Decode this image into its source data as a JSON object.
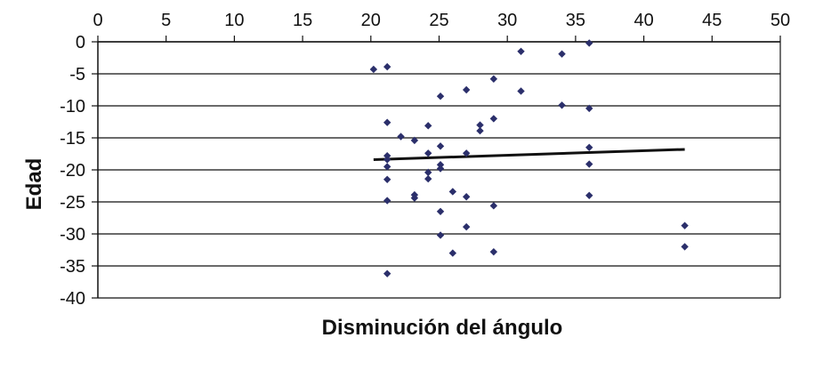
{
  "chart_data": {
    "type": "scatter",
    "title": "",
    "xlabel": "Disminución del ángulo",
    "ylabel": "Edad",
    "xlim": [
      0,
      50
    ],
    "ylim": [
      -40,
      0
    ],
    "x_ticks": [
      0,
      5,
      10,
      15,
      20,
      25,
      30,
      35,
      40,
      45,
      50
    ],
    "y_ticks": [
      0,
      -5,
      -10,
      -15,
      -20,
      -25,
      -30,
      -35,
      -40
    ],
    "x_axis_position": "top",
    "grid": "horizontal",
    "legend": "none",
    "series": [
      {
        "marker": "diamond",
        "color": "#2b2f6b",
        "points": [
          [
            20.2,
            -4.3
          ],
          [
            21.2,
            -3.9
          ],
          [
            21.2,
            -12.6
          ],
          [
            22.2,
            -14.8
          ],
          [
            21.2,
            -17.8
          ],
          [
            21.2,
            -18.4
          ],
          [
            21.2,
            -19.5
          ],
          [
            21.2,
            -21.5
          ],
          [
            21.2,
            -24.8
          ],
          [
            21.2,
            -36.2
          ],
          [
            23.2,
            -15.4
          ],
          [
            23.2,
            -23.9
          ],
          [
            23.2,
            -24.4
          ],
          [
            24.2,
            -13.1
          ],
          [
            24.2,
            -17.4
          ],
          [
            24.2,
            -20.4
          ],
          [
            24.2,
            -21.4
          ],
          [
            25.1,
            -8.5
          ],
          [
            25.1,
            -16.3
          ],
          [
            25.1,
            -19.2
          ],
          [
            25.1,
            -19.8
          ],
          [
            25.1,
            -26.5
          ],
          [
            25.1,
            -30.2
          ],
          [
            26.0,
            -23.4
          ],
          [
            26.0,
            -33.0
          ],
          [
            27.0,
            -7.5
          ],
          [
            27.0,
            -17.4
          ],
          [
            27.0,
            -24.2
          ],
          [
            27.0,
            -28.9
          ],
          [
            28.0,
            -13.0
          ],
          [
            28.0,
            -13.9
          ],
          [
            29.0,
            -5.8
          ],
          [
            29.0,
            -12.0
          ],
          [
            29.0,
            -25.6
          ],
          [
            29.0,
            -32.8
          ],
          [
            31.0,
            -1.5
          ],
          [
            31.0,
            -7.7
          ],
          [
            34.0,
            -1.9
          ],
          [
            34.0,
            -9.9
          ],
          [
            36.0,
            -0.2
          ],
          [
            36.0,
            -10.4
          ],
          [
            36.0,
            -16.5
          ],
          [
            36.0,
            -19.1
          ],
          [
            36.0,
            -24.0
          ],
          [
            43.0,
            -28.7
          ],
          [
            43.0,
            -32.0
          ]
        ]
      }
    ],
    "trendline": {
      "color": "#111111",
      "from": [
        20.2,
        -18.4
      ],
      "to": [
        43.0,
        -16.8
      ]
    }
  }
}
